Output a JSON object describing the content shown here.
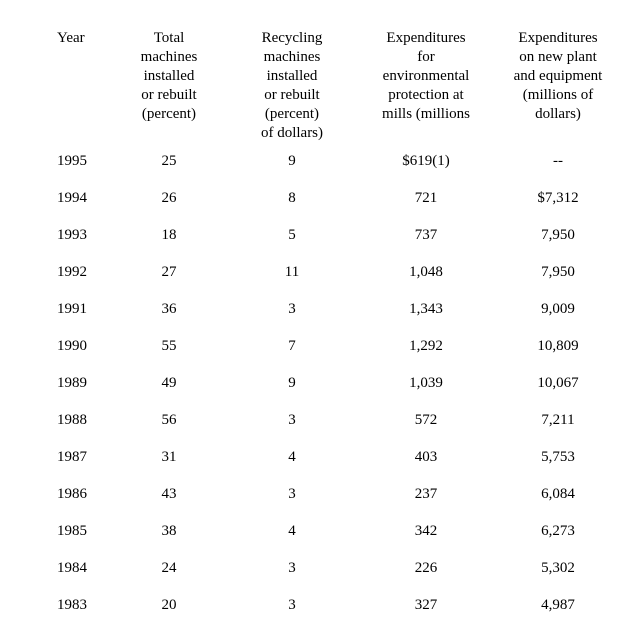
{
  "table": {
    "headers": [
      "Year",
      "Total\nmachines\ninstalled\nor rebuilt\n(percent)",
      "Recycling\nmachines\ninstalled\nor rebuilt\n(percent)\nof dollars)",
      "Expenditures\nfor\nenvironmental\nprotection at\nmills (millions",
      "Expenditures\non new plant\nand equipment\n(millions of\ndollars)"
    ],
    "rows": [
      [
        "1995",
        "25",
        "9",
        "$619(1)",
        "--"
      ],
      [
        "1994",
        "26",
        "8",
        "721",
        "$7,312"
      ],
      [
        "1993",
        "18",
        "5",
        "737",
        "7,950"
      ],
      [
        "1992",
        "27",
        "11",
        "1,048",
        "7,950"
      ],
      [
        "1991",
        "36",
        "3",
        "1,343",
        "9,009"
      ],
      [
        "1990",
        "55",
        "7",
        "1,292",
        "10,809"
      ],
      [
        "1989",
        "49",
        "9",
        "1,039",
        "10,067"
      ],
      [
        "1988",
        "56",
        "3",
        "572",
        "7,211"
      ],
      [
        "1987",
        "31",
        "4",
        "403",
        "5,753"
      ],
      [
        "1986",
        "43",
        "3",
        "237",
        "6,084"
      ],
      [
        "1985",
        "38",
        "4",
        "342",
        "6,273"
      ],
      [
        "1984",
        "24",
        "3",
        "226",
        "5,302"
      ],
      [
        "1983",
        "20",
        "3",
        "327",
        "4,987"
      ]
    ],
    "colors": {
      "text": "#000000",
      "background": "#ffffff"
    }
  },
  "chart_data": {
    "type": "table",
    "columns": [
      "Year",
      "Total machines installed or rebuilt (percent)",
      "Recycling machines installed or rebuilt (percent) of dollars)",
      "Expenditures for environmental protection at mills (millions",
      "Expenditures on new plant and equipment (millions of dollars)"
    ],
    "years": [
      1995,
      1994,
      1993,
      1992,
      1991,
      1990,
      1989,
      1988,
      1987,
      1986,
      1985,
      1984,
      1983
    ],
    "total_machines_pct": [
      25,
      26,
      18,
      27,
      36,
      55,
      49,
      56,
      31,
      43,
      38,
      24,
      20
    ],
    "recycling_machines_pct": [
      9,
      8,
      5,
      11,
      3,
      7,
      9,
      3,
      4,
      3,
      4,
      3,
      3
    ],
    "env_protection_expenditures": [
      "$619(1)",
      "721",
      "737",
      "1,048",
      "1,343",
      "1,292",
      "1,039",
      "572",
      "403",
      "237",
      "342",
      "226",
      "327"
    ],
    "new_plant_equipment_expenditures": [
      "--",
      "$7,312",
      "7,950",
      "7,950",
      "9,009",
      "10,809",
      "10,067",
      "7,211",
      "5,753",
      "6,084",
      "6,273",
      "5,302",
      "4,987"
    ]
  }
}
